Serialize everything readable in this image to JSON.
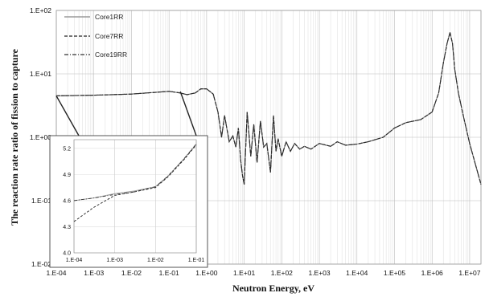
{
  "chart_data": {
    "type": "line",
    "title": "",
    "xlabel": "Neutron Energy, eV",
    "ylabel": "The reaction rate ratio of fission to capture",
    "xscale": "log",
    "yscale": "log",
    "xlim": [
      0.0001,
      20000000
    ],
    "ylim": [
      0.01,
      100
    ],
    "grid": true,
    "legend_position": "top-left",
    "x_tick_labels": [
      "1.E-04",
      "1.E-03",
      "1.E-02",
      "1.E-01",
      "1.E+00",
      "1.E+01",
      "1.E+02",
      "1.E+03",
      "1.E+04",
      "1.E+05",
      "1.E+06",
      "1.E+07"
    ],
    "y_tick_labels": [
      "1.E-02",
      "1.E-01",
      "1.E+00",
      "1.E+01",
      "1.E+02"
    ],
    "series": [
      {
        "name": "Core1RR",
        "style": "solid",
        "color": "#888888"
      },
      {
        "name": "Core7RR",
        "style": "dashed",
        "color": "#222222"
      },
      {
        "name": "Core19RR",
        "style": "dash-dot",
        "color": "#333333"
      }
    ],
    "x": [
      0.0001,
      0.001,
      0.01,
      0.1,
      0.2,
      0.3,
      0.5,
      0.7,
      1.0,
      1.5,
      2.0,
      2.5,
      3.0,
      4.0,
      5.0,
      6.0,
      7.0,
      8.0,
      9.0,
      10.0,
      12.0,
      15.0,
      18.0,
      22.0,
      27.0,
      33.0,
      40.0,
      50.0,
      60.0,
      70.0,
      80.0,
      100.0,
      130.0,
      170.0,
      220.0,
      300.0,
      400.0,
      600.0,
      1000.0,
      2000.0,
      3000.0,
      5000.0,
      10000.0,
      20000.0,
      50000.0,
      100000.0,
      200000.0,
      500000.0,
      1000000.0,
      1500000.0,
      2000000.0,
      2500000.0,
      3000000.0,
      3500000.0,
      4000000.0,
      5000000.0,
      7000000.0,
      10000000.0,
      20000000.0
    ],
    "y": [
      4.5,
      4.6,
      4.8,
      5.3,
      5.0,
      4.7,
      5.0,
      5.8,
      5.8,
      4.8,
      2.5,
      1.0,
      2.2,
      0.85,
      1.05,
      0.7,
      1.4,
      0.45,
      0.25,
      0.18,
      2.5,
      0.5,
      1.6,
      0.4,
      1.8,
      0.7,
      0.8,
      0.28,
      2.2,
      0.6,
      0.95,
      0.5,
      0.85,
      0.6,
      0.8,
      0.65,
      0.72,
      0.65,
      0.8,
      0.72,
      0.85,
      0.75,
      0.78,
      0.85,
      1.0,
      1.4,
      1.7,
      1.9,
      2.5,
      5.0,
      15.0,
      30.0,
      45.0,
      30.0,
      12.0,
      5.0,
      2.0,
      0.8,
      0.18
    ],
    "inset": {
      "type": "line",
      "xscale": "log",
      "xlim": [
        0.0001,
        0.1
      ],
      "ylim": [
        4.0,
        5.3
      ],
      "x_tick_labels": [
        "1.E-04",
        "1.E-03",
        "1.E-02",
        "1.E-01"
      ],
      "y_tick_labels": [
        "4.0",
        "4.3",
        "4.6",
        "4.9",
        "5.2"
      ],
      "x": [
        0.0001,
        0.0003,
        0.001,
        0.003,
        0.01,
        0.02,
        0.05,
        0.1
      ],
      "series": [
        {
          "name": "Core1RR",
          "values": [
            4.6,
            4.63,
            4.68,
            4.71,
            4.76,
            4.88,
            5.08,
            5.25
          ]
        },
        {
          "name": "Core7RR",
          "values": [
            4.36,
            4.52,
            4.66,
            4.7,
            4.75,
            4.87,
            5.07,
            5.24
          ]
        },
        {
          "name": "Core19RR",
          "values": [
            4.6,
            4.63,
            4.67,
            4.7,
            4.76,
            4.88,
            5.08,
            5.25
          ]
        }
      ]
    }
  }
}
